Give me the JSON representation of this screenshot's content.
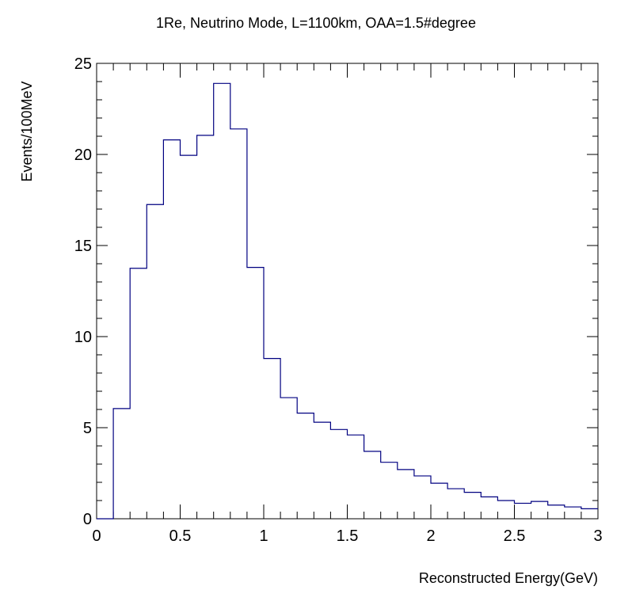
{
  "chart_data": {
    "type": "bar",
    "title": "1Re, Neutrino Mode, L=1100km, OAA=1.5#degree",
    "xlabel": "Reconstructed Energy(GeV)",
    "ylabel": "Events/100MeV",
    "xlim": [
      0,
      3
    ],
    "ylim": [
      0,
      25
    ],
    "bin_width": 0.1,
    "bin_edges": [
      0,
      0.1,
      0.2,
      0.3,
      0.4,
      0.5,
      0.6,
      0.7,
      0.8,
      0.9,
      1.0,
      1.1,
      1.2,
      1.3,
      1.4,
      1.5,
      1.6,
      1.7,
      1.8,
      1.9,
      2.0,
      2.1,
      2.2,
      2.3,
      2.4,
      2.5,
      2.6,
      2.7,
      2.8,
      2.9,
      3.0
    ],
    "values": [
      0.0,
      6.05,
      13.75,
      17.25,
      20.8,
      19.95,
      21.05,
      23.9,
      21.4,
      13.8,
      8.8,
      6.65,
      5.8,
      5.3,
      4.9,
      4.6,
      3.7,
      3.1,
      2.7,
      2.35,
      1.95,
      1.65,
      1.45,
      1.2,
      1.0,
      0.85,
      0.95,
      0.75,
      0.65,
      0.55
    ],
    "line_color": "#000080",
    "grid": false,
    "x_ticks": [
      "0",
      "0.5",
      "1",
      "1.5",
      "2",
      "2.5",
      "3"
    ],
    "y_ticks": [
      "0",
      "5",
      "10",
      "15",
      "20",
      "25"
    ]
  }
}
